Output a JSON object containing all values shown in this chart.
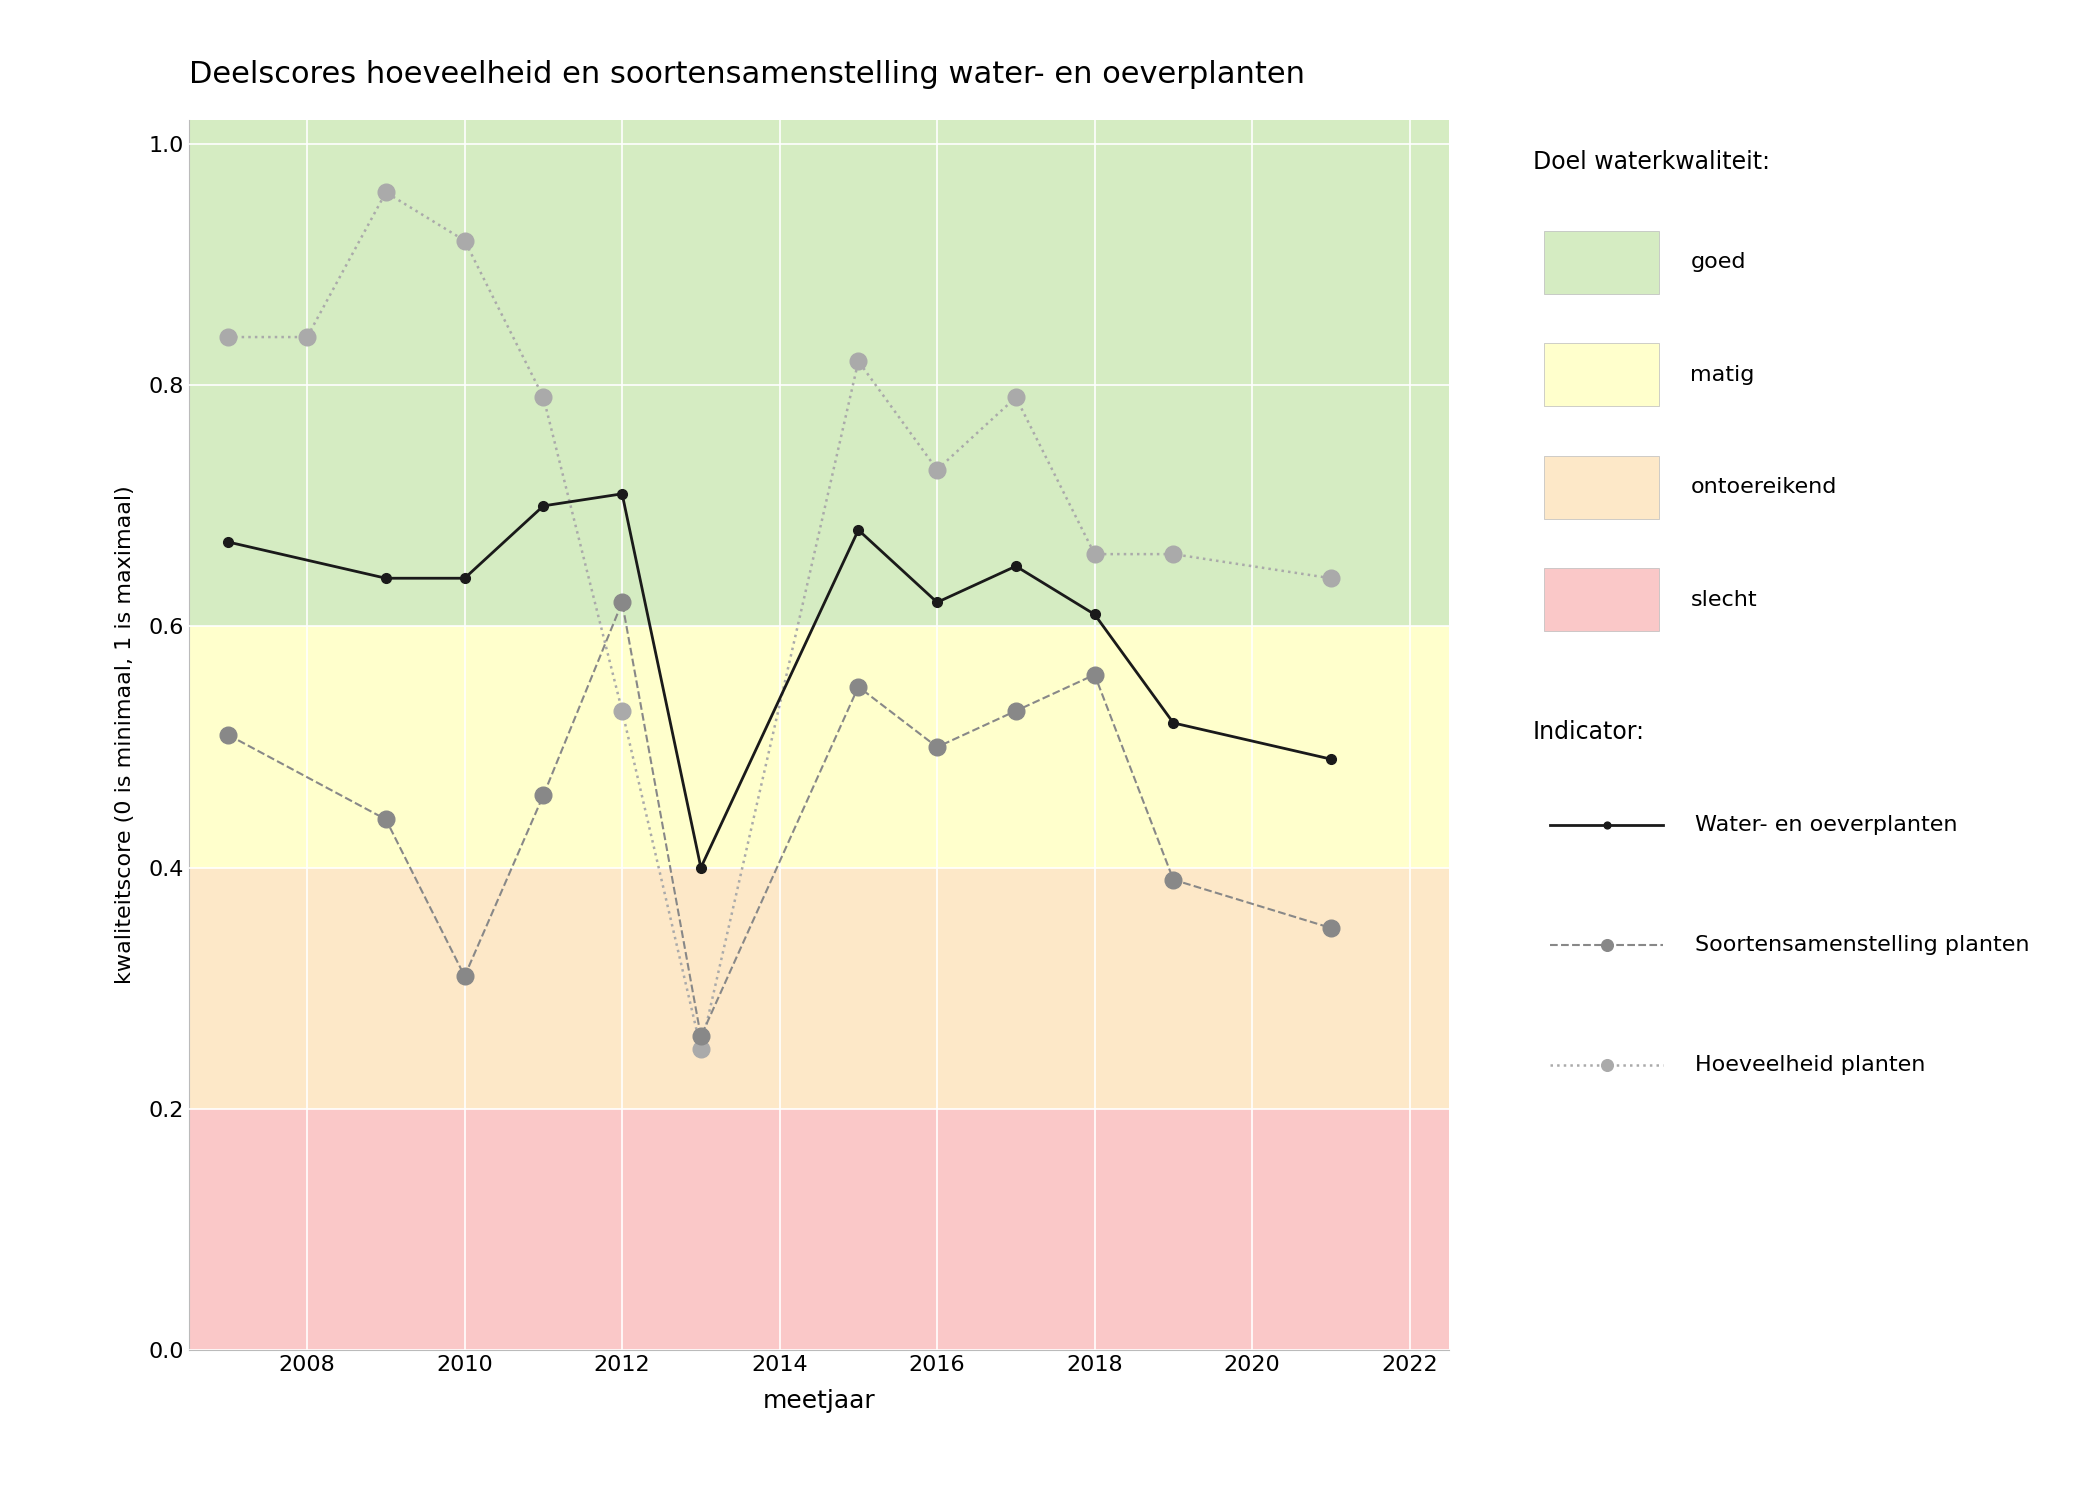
{
  "title": "Deelscores hoeveelheid en soortensamenstelling water- en oeverplanten",
  "xlabel": "meetjaar",
  "ylabel": "kwaliteitscore (0 is minimaal, 1 is maximaal)",
  "xlim": [
    2006.5,
    2022.5
  ],
  "ylim": [
    0.0,
    1.02
  ],
  "xticks": [
    2008,
    2010,
    2012,
    2014,
    2016,
    2018,
    2020,
    2022
  ],
  "yticks": [
    0.0,
    0.2,
    0.4,
    0.6,
    0.8,
    1.0
  ],
  "background_color": "#ffffff",
  "plot_bg": "#ffffff",
  "quality_zones": [
    {
      "label": "goed",
      "ymin": 0.6,
      "ymax": 1.02,
      "color": "#d5ecc2"
    },
    {
      "label": "matig",
      "ymin": 0.4,
      "ymax": 0.6,
      "color": "#ffffcc"
    },
    {
      "label": "ontoereikend",
      "ymin": 0.2,
      "ymax": 0.4,
      "color": "#fde8c8"
    },
    {
      "label": "slecht",
      "ymin": 0.0,
      "ymax": 0.2,
      "color": "#fac8c8"
    }
  ],
  "series_water_oever": {
    "years": [
      2007,
      2009,
      2010,
      2011,
      2012,
      2013,
      2015,
      2016,
      2017,
      2018,
      2019,
      2021
    ],
    "values": [
      0.67,
      0.64,
      0.64,
      0.7,
      0.71,
      0.4,
      0.68,
      0.62,
      0.65,
      0.61,
      0.52,
      0.49
    ],
    "color": "#1a1a1a",
    "linestyle": "-",
    "linewidth": 2.0,
    "marker": "o",
    "markersize": 7,
    "label": "Water- en oeverplanten"
  },
  "series_soorten": {
    "years": [
      2007,
      2009,
      2010,
      2011,
      2012,
      2013,
      2015,
      2016,
      2017,
      2018,
      2019,
      2021
    ],
    "values": [
      0.51,
      0.44,
      0.31,
      0.46,
      0.62,
      0.26,
      0.55,
      0.5,
      0.53,
      0.56,
      0.39,
      0.35
    ],
    "color": "#888888",
    "linestyle": "--",
    "linewidth": 1.5,
    "marker": "o",
    "markersize": 12,
    "label": "Soortensamenstelling planten"
  },
  "series_hoeveelheid": {
    "years": [
      2007,
      2008,
      2009,
      2010,
      2011,
      2012,
      2013,
      2015,
      2016,
      2017,
      2018,
      2019,
      2021
    ],
    "values": [
      0.84,
      0.84,
      0.96,
      0.92,
      0.79,
      0.53,
      0.25,
      0.82,
      0.73,
      0.79,
      0.66,
      0.66,
      0.64
    ],
    "color": "#aaaaaa",
    "linestyle": ":",
    "linewidth": 1.8,
    "marker": "o",
    "markersize": 12,
    "label": "Hoeveelheid planten"
  },
  "legend_quality_title": "Doel waterkwaliteit:",
  "legend_indicator_title": "Indicator:",
  "legend_quality_items": [
    {
      "label": "goed",
      "color": "#d5ecc2"
    },
    {
      "label": "matig",
      "color": "#ffffcc"
    },
    {
      "label": "ontoereikend",
      "color": "#fde8c8"
    },
    {
      "label": "slecht",
      "color": "#fac8c8"
    }
  ]
}
